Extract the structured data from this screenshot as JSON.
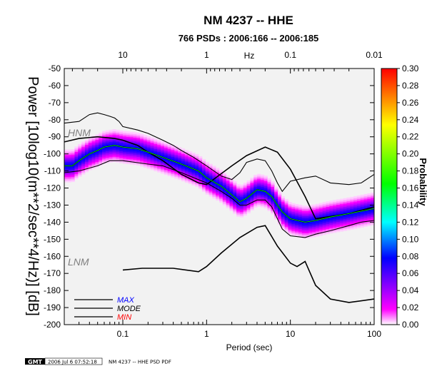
{
  "chart_data": {
    "type": "heatmap",
    "title": "NM 4237 -- HHE",
    "subtitle": "766 PSDs : 2006:166 -- 2006:185",
    "xlabel": "Period (sec)",
    "ylabel": "Power [10log10(m**2/sec**4/Hz)] [dB]",
    "top_axis_label": "Hz",
    "x_scale": "log",
    "xlim": [
      0.02,
      100
    ],
    "ylim": [
      -200,
      -50
    ],
    "x_ticks": [
      0.1,
      1,
      10,
      100
    ],
    "x_tick_labels": [
      "0.1",
      "1",
      "10",
      "100"
    ],
    "top_ticks": [
      10,
      1,
      0.1,
      0.01
    ],
    "top_tick_labels": [
      "10",
      "1",
      "0.1",
      "0.01"
    ],
    "y_ticks": [
      -50,
      -60,
      -70,
      -80,
      -90,
      -100,
      -110,
      -120,
      -130,
      -140,
      -150,
      -160,
      -170,
      -180,
      -190,
      -200
    ],
    "y_tick_labels": [
      "-50",
      "-60",
      "-70",
      "-80",
      "-90",
      "-100",
      "-110",
      "-120",
      "-130",
      "-140",
      "-150",
      "-160",
      "-170",
      "-180",
      "-190",
      "-200"
    ],
    "colorbar": {
      "label": "Probability",
      "range": [
        0,
        0.3
      ],
      "ticks": [
        0.3,
        0.28,
        0.26,
        0.24,
        0.22,
        0.2,
        0.18,
        0.16,
        0.14,
        0.12,
        0.1,
        0.08,
        0.06,
        0.04,
        0.02,
        0.0
      ],
      "tick_labels": [
        "0.30",
        "0.28",
        "0.26",
        "0.24",
        "0.22",
        "0.20",
        "0.18",
        "0.16",
        "0.14",
        "0.12",
        "0.10",
        "0.08",
        "0.06",
        "0.04",
        "0.02",
        "0.00"
      ],
      "colors": [
        "#ffffff",
        "#ff00ff",
        "#0000ff",
        "#00ffff",
        "#00ff00",
        "#ffff00",
        "#ff0000"
      ]
    },
    "model_labels": [
      "HNM",
      "LNM"
    ],
    "legend": {
      "placement": "bottom-left",
      "entries": [
        {
          "label": "MAX",
          "color": "#0000ff"
        },
        {
          "label": "MODE",
          "color": "#000000"
        },
        {
          "label": "MIN",
          "color": "#ff0000"
        }
      ]
    },
    "series": [
      {
        "name": "HNM",
        "x": [
          0.02,
          0.03,
          0.05,
          0.08,
          0.1,
          0.15,
          0.2,
          0.3,
          0.5,
          0.8,
          1,
          2,
          3,
          5,
          7,
          10,
          15,
          20,
          50,
          100
        ],
        "y": [
          -93,
          -91,
          -90,
          -91,
          -92,
          -95,
          -99,
          -104,
          -112,
          -117,
          -118,
          -107,
          -101,
          -96,
          -99,
          -109,
          -125,
          -138,
          -135,
          -131
        ]
      },
      {
        "name": "LNM",
        "x": [
          0.1,
          0.17,
          0.4,
          0.8,
          1,
          1.5,
          2.5,
          4,
          5,
          7,
          10,
          12,
          15,
          20,
          30,
          50,
          100
        ],
        "y": [
          -168,
          -167,
          -167,
          -169,
          -166,
          -158,
          -149,
          -143,
          -142,
          -154,
          -164,
          -166,
          -163,
          -177,
          -185,
          -187,
          -185
        ]
      },
      {
        "name": "max",
        "x": [
          0.02,
          0.03,
          0.04,
          0.05,
          0.06,
          0.07,
          0.08,
          0.09,
          0.1,
          0.15,
          0.2,
          0.3,
          0.4,
          0.5,
          0.7,
          1,
          1.5,
          2,
          2.5,
          3,
          4,
          5,
          6,
          7,
          8,
          10,
          15,
          20,
          30,
          50,
          70,
          100
        ],
        "y": [
          -82,
          -81,
          -77,
          -76,
          -77,
          -78,
          -79,
          -81,
          -84,
          -86,
          -88,
          -92,
          -95,
          -98,
          -102,
          -107,
          -113,
          -115,
          -111,
          -105,
          -103,
          -104,
          -110,
          -117,
          -122,
          -116,
          -114,
          -113,
          -117,
          -118,
          -117,
          -112
        ]
      },
      {
        "name": "min",
        "x": [
          0.02,
          0.03,
          0.05,
          0.07,
          0.1,
          0.2,
          0.3,
          0.5,
          1,
          1.5,
          2,
          2.5,
          3,
          4,
          5,
          6,
          7,
          8,
          10,
          15,
          20,
          30,
          50,
          70,
          100
        ],
        "y": [
          -111,
          -110,
          -107,
          -104,
          -104,
          -106,
          -107,
          -111,
          -117,
          -122,
          -126,
          -130,
          -130,
          -127,
          -127,
          -131,
          -138,
          -144,
          -148,
          -149,
          -147,
          -145,
          -142,
          -140,
          -139
        ]
      },
      {
        "name": "mode",
        "x": [
          0.02,
          0.025,
          0.03,
          0.04,
          0.05,
          0.06,
          0.08,
          0.1,
          0.15,
          0.2,
          0.3,
          0.5,
          0.8,
          1,
          1.5,
          2,
          2.5,
          3,
          4,
          5,
          6,
          7,
          8,
          10,
          15,
          20,
          30,
          50,
          100
        ],
        "y": [
          -107,
          -107,
          -104,
          -100,
          -98,
          -96,
          -95,
          -96,
          -97,
          -99,
          -102,
          -106,
          -110,
          -114,
          -119,
          -124,
          -128,
          -126,
          -121,
          -122,
          -125,
          -130,
          -134,
          -138,
          -140,
          -139,
          -137,
          -135,
          -132
        ]
      }
    ]
  },
  "footer": {
    "logo_text": "GMT",
    "timestamp": "2006 Jul  6 07:52:18",
    "caption": "NM 4237 -- HHE PSD PDF"
  }
}
